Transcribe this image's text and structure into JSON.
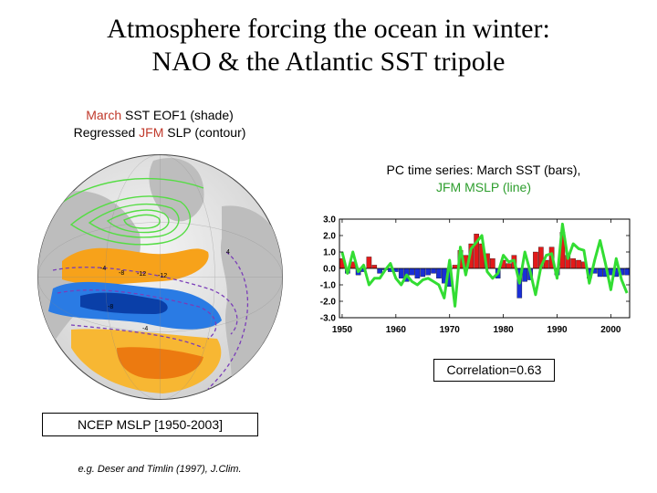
{
  "title": {
    "line1": "Atmosphere forcing the ocean in winter:",
    "line2": "NAO & the Atlantic SST tripole"
  },
  "map_caption": {
    "line1_a": "March",
    "line1_b": " SST EOF1 (shade)",
    "line2_a": "Regressed ",
    "line2_b": "JFM",
    "line2_c": " SLP (contour)"
  },
  "pc_caption": {
    "line1": "PC time series: March SST (bars),",
    "line2": "JFM MSLP (line)"
  },
  "correlation_label": "Correlation=0.63",
  "ncep_label": "NCEP MSLP [1950-2003]",
  "reference": "e.g. Deser and Timlin (1997), J.Clim.",
  "colors": {
    "bar_positive": "#e21a1a",
    "bar_negative": "#1a2fd6",
    "line": "#33dd33",
    "ocean_warm": "#f7a21a",
    "ocean_cold": "#2a7be4",
    "land": "#b8b8b8",
    "contour_pos": "#55dd44",
    "contour_neg": "#7a3db8"
  },
  "map_labels": [
    "-4",
    "-8",
    "-12",
    "-12",
    "-8",
    "-4",
    "4"
  ],
  "chart_data": {
    "type": "bar",
    "x_ticks": [
      1950,
      1960,
      1970,
      1980,
      1990,
      2000
    ],
    "y_ticks": [
      "3.0",
      "2.0",
      "1.0",
      "0.0",
      "-1.0",
      "-2.0",
      "-3.0"
    ],
    "ylim": [
      -3,
      3
    ],
    "xlim": [
      1949.5,
      2003.5
    ],
    "years": [
      1950,
      1951,
      1952,
      1953,
      1954,
      1955,
      1956,
      1957,
      1958,
      1959,
      1960,
      1961,
      1962,
      1963,
      1964,
      1965,
      1966,
      1967,
      1968,
      1969,
      1970,
      1971,
      1972,
      1973,
      1974,
      1975,
      1976,
      1977,
      1978,
      1979,
      1980,
      1981,
      1982,
      1983,
      1984,
      1985,
      1986,
      1987,
      1988,
      1989,
      1990,
      1991,
      1992,
      1993,
      1994,
      1995,
      1996,
      1997,
      1998,
      1999,
      2000,
      2001,
      2002,
      2003
    ],
    "series": [
      {
        "name": "March SST",
        "type": "bar",
        "values": [
          0.6,
          -0.3,
          0.4,
          -0.4,
          -0.2,
          0.7,
          0.2,
          -0.3,
          -0.1,
          -0.2,
          -0.2,
          -0.6,
          -0.8,
          -0.4,
          -0.6,
          -0.5,
          -0.4,
          -0.3,
          -0.6,
          -0.9,
          -1.1,
          0.2,
          1.1,
          0.8,
          1.5,
          2.1,
          1.5,
          0.9,
          0.6,
          -0.6,
          0.5,
          0.3,
          0.8,
          -1.8,
          -0.8,
          -0.7,
          1.0,
          1.3,
          0.5,
          1.3,
          -0.4,
          2.2,
          0.8,
          0.6,
          0.5,
          0.4,
          -0.6,
          -0.3,
          -0.5,
          -0.5,
          -0.4,
          -0.5,
          -0.4,
          -0.4
        ]
      },
      {
        "name": "JFM MSLP",
        "type": "line",
        "values": [
          1.0,
          -0.3,
          1.0,
          -0.2,
          0.2,
          -1.0,
          -0.6,
          -0.6,
          -0.1,
          0.3,
          -0.6,
          -1.0,
          -0.4,
          -0.8,
          -1.0,
          -0.7,
          -0.6,
          -0.8,
          -1.0,
          -1.8,
          0.5,
          -2.3,
          1.3,
          -0.4,
          1.2,
          1.6,
          2.0,
          -0.2,
          -0.6,
          -0.3,
          0.8,
          0.4,
          0.5,
          -0.9,
          1.0,
          -0.2,
          -1.6,
          0.1,
          0.8,
          0.9,
          -0.6,
          2.7,
          0.6,
          1.5,
          1.2,
          1.1,
          -0.9,
          0.5,
          1.7,
          0.3,
          -1.3,
          0.6,
          -0.7,
          -1.5
        ]
      }
    ]
  }
}
